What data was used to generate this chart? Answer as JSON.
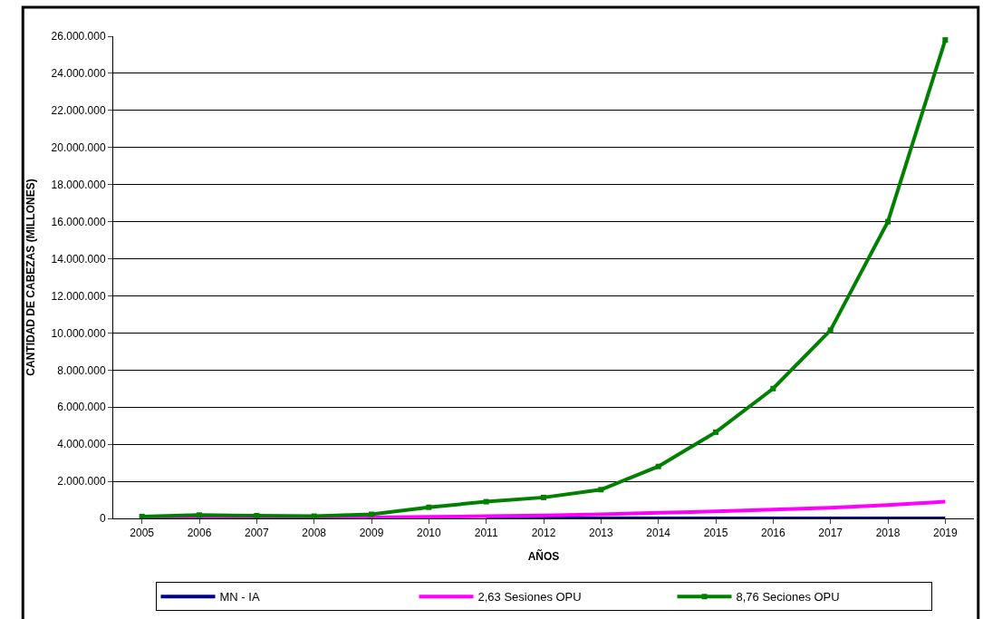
{
  "chart_data": {
    "type": "line",
    "xlabel": "AÑOS",
    "ylabel": "CANTIDAD DE CABEZAS (MILLONES)",
    "categories": [
      "2005",
      "2006",
      "2007",
      "2008",
      "2009",
      "2010",
      "2011",
      "2012",
      "2013",
      "2014",
      "2015",
      "2016",
      "2017",
      "2018",
      "2019"
    ],
    "series": [
      {
        "name": "MN - IA",
        "color": "#000080",
        "marker": "none",
        "values": [
          null,
          null,
          null,
          null,
          null,
          null,
          0,
          0,
          0,
          0,
          0,
          0,
          0,
          0,
          0
        ]
      },
      {
        "name": "2,63 Sesiones OPU",
        "color": "#ff00ff",
        "marker": "none",
        "values": [
          20000,
          30000,
          30000,
          30000,
          50000,
          80000,
          120000,
          160000,
          220000,
          300000,
          380000,
          480000,
          580000,
          720000,
          900000
        ]
      },
      {
        "name": "8,76 Seciones OPU",
        "color": "#008000",
        "marker": "square",
        "values": [
          100000,
          180000,
          150000,
          120000,
          220000,
          600000,
          900000,
          1130000,
          1550000,
          2800000,
          4650000,
          7000000,
          10150000,
          16000000,
          25800000
        ]
      }
    ],
    "ylim": [
      0,
      26000000
    ],
    "yticks": [
      {
        "value": 0,
        "label": "0"
      },
      {
        "value": 2000000,
        "label": "2.000.000"
      },
      {
        "value": 4000000,
        "label": "4.000.000"
      },
      {
        "value": 6000000,
        "label": "6.000.000"
      },
      {
        "value": 8000000,
        "label": "8.000.000"
      },
      {
        "value": 10000000,
        "label": "10.000.000"
      },
      {
        "value": 12000000,
        "label": "12.000.000"
      },
      {
        "value": 14000000,
        "label": "14.000.000"
      },
      {
        "value": 16000000,
        "label": "16.000.000"
      },
      {
        "value": 18000000,
        "label": "18.000.000"
      },
      {
        "value": 20000000,
        "label": "20.000.000"
      },
      {
        "value": 22000000,
        "label": "22.000.000"
      },
      {
        "value": 24000000,
        "label": "24.000.000"
      },
      {
        "value": 26000000,
        "label": "26.000.000"
      }
    ],
    "grid": "y",
    "legend": "bottom",
    "line_style": "solid"
  }
}
